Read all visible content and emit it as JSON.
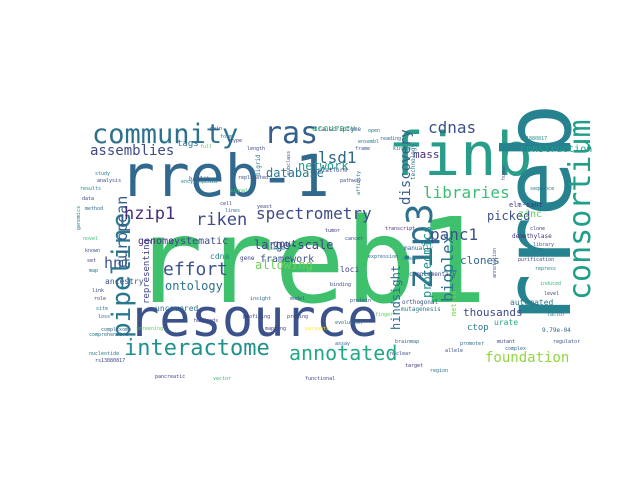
{
  "words": [
    {
      "text": "rreb1",
      "color": "#3ec06d"
    },
    {
      "text": "rreb-1",
      "color": "#31688e"
    },
    {
      "text": "resource",
      "color": "#3b528b"
    },
    {
      "text": "finb",
      "color": "#2a9d8a"
    },
    {
      "text": "rreb",
      "color": "#26828e"
    },
    {
      "text": "consortium",
      "color": "#1f9e89"
    },
    {
      "text": "pipeline",
      "color": "#2a788e"
    },
    {
      "text": "community",
      "color": "#2c728e"
    },
    {
      "text": "ras",
      "color": "#355f8d"
    },
    {
      "text": "zip3",
      "color": "#2d718e"
    },
    {
      "text": "interactome",
      "color": "#21918c"
    },
    {
      "text": "annotated",
      "color": "#22a884"
    },
    {
      "text": "cdnas",
      "color": "#3b528b"
    },
    {
      "text": "assemblies",
      "color": "#3e4989"
    },
    {
      "text": "libraries",
      "color": "#3dbc74"
    },
    {
      "text": "spectrometry",
      "color": "#3e4a89"
    },
    {
      "text": "riken",
      "color": "#3e4a89"
    },
    {
      "text": "european",
      "color": "#355f8d"
    },
    {
      "text": "hzip1",
      "color": "#472d7b"
    },
    {
      "text": "panc1",
      "color": "#3b528b"
    },
    {
      "text": "lsd1",
      "color": "#31688e"
    },
    {
      "text": "bioplex",
      "color": "#2c738e"
    },
    {
      "text": "effort",
      "color": "#3b528b"
    },
    {
      "text": "foundation",
      "color": "#90d743"
    },
    {
      "text": "discovery",
      "color": "#355f8d"
    },
    {
      "text": "hnt",
      "color": "#3b528b"
    },
    {
      "text": "network",
      "color": "#1f9a8a"
    },
    {
      "text": "database",
      "color": "#2a788e"
    },
    {
      "text": "ontology",
      "color": "#2c728e"
    },
    {
      "text": "allowing",
      "color": "#6ece58"
    },
    {
      "text": "hindsight",
      "color": "#2c728e"
    },
    {
      "text": "genome",
      "color": "#46327e"
    },
    {
      "text": "picked",
      "color": "#3b528b"
    },
    {
      "text": "proteomics",
      "color": "#21918c"
    },
    {
      "text": "large-scale",
      "color": "#414487"
    },
    {
      "text": "thousands",
      "color": "#3e4989"
    },
    {
      "text": "mass",
      "color": "#472d7b"
    },
    {
      "text": "clones",
      "color": "#31688e"
    },
    {
      "text": "construction",
      "color": "#1f9e89"
    },
    {
      "text": "zinc",
      "color": "#5ec962"
    },
    {
      "text": "framework",
      "color": "#3b528b"
    },
    {
      "text": "gout",
      "color": "#3e4989"
    },
    {
      "text": "systematic",
      "color": "#3e4989"
    },
    {
      "text": "representing",
      "color": "#414487"
    },
    {
      "text": "tags",
      "color": "#2c728e"
    },
    {
      "text": "accuracy",
      "color": "#3dbc74"
    },
    {
      "text": "automated",
      "color": "#2a788e"
    },
    {
      "text": "ctop",
      "color": "#2a788e"
    },
    {
      "text": "urate",
      "color": "#22a884"
    },
    {
      "text": "elm-sant",
      "color": "#46327e"
    },
    {
      "text": "ancestry",
      "color": "#3b528b"
    },
    {
      "text": "loci",
      "color": "#414487"
    },
    {
      "text": "cdna",
      "color": "#26828e"
    },
    {
      "text": "metric",
      "color": "#7ad151"
    },
    {
      "text": "uncovered",
      "color": "#2c728e"
    },
    {
      "text": "gene",
      "color": "#414487"
    },
    {
      "text": "health",
      "color": "#3b528b"
    },
    {
      "text": "platform",
      "color": "#3e4989"
    },
    {
      "text": "transcriptome",
      "color": "#3b528b"
    },
    {
      "text": "technology",
      "color": "#2c728e"
    },
    {
      "text": "complementary",
      "color": "#3e4989"
    },
    {
      "text": "manually",
      "color": "#31688e"
    },
    {
      "text": "mutagenesis",
      "color": "#2a788e"
    },
    {
      "text": "orthogonal",
      "color": "#3b528b"
    },
    {
      "text": "demethylase",
      "color": "#46327e"
    },
    {
      "text": "replicated",
      "color": "#3e4989"
    },
    {
      "text": "bigrid",
      "color": "#2a788e"
    },
    {
      "text": "probing",
      "color": "#414487"
    },
    {
      "text": "9.79e-04",
      "color": "#31688e"
    },
    {
      "text": "rs1880817",
      "color": "#21918c"
    },
    {
      "text": "comprehensive",
      "color": "#2c728e"
    },
    {
      "text": "encyclopedia",
      "color": "#26828e"
    },
    {
      "text": "brainmap",
      "color": "#31688e"
    },
    {
      "text": "evolution",
      "color": "#31688e"
    },
    {
      "text": "subclass",
      "color": "#3b528b"
    },
    {
      "text": "screening",
      "color": "#5ec962"
    },
    {
      "text": "nucleotide",
      "color": "#2a788e"
    },
    {
      "text": "mapping",
      "color": "#414487"
    },
    {
      "text": "variants",
      "color": "#fde725"
    },
    {
      "text": "hundreds",
      "color": "#414487"
    },
    {
      "text": "functional",
      "color": "#3e4989"
    },
    {
      "text": "rs13880817",
      "color": "#3e4989"
    },
    {
      "text": "pancreatic",
      "color": "#414487"
    },
    {
      "text": "complexome",
      "color": "#31688e"
    },
    {
      "text": "genomics",
      "color": "#2a788e"
    },
    {
      "text": "profiling",
      "color": "#46327e"
    },
    {
      "text": "insight",
      "color": "#31688e"
    },
    {
      "text": "vector",
      "color": "#35b779"
    },
    {
      "text": "yeast",
      "color": "#414487"
    },
    {
      "text": "affinity",
      "color": "#2c728e"
    },
    {
      "text": "purification",
      "color": "#414487"
    },
    {
      "text": "ensembl",
      "color": "#2a788e"
    },
    {
      "text": "annotation",
      "color": "#3b528b"
    },
    {
      "text": "transcript",
      "color": "#472d7b"
    },
    {
      "text": "human",
      "color": "#3e4989"
    },
    {
      "text": "protein",
      "color": "#3b528b"
    },
    {
      "text": "scale",
      "color": "#26828e"
    },
    {
      "text": "signal",
      "color": "#3dbc74"
    },
    {
      "text": "cell",
      "color": "#414487"
    },
    {
      "text": "lines",
      "color": "#2c728e"
    },
    {
      "text": "model",
      "color": "#3b528b"
    },
    {
      "text": "assay",
      "color": "#31688e"
    },
    {
      "text": "binding",
      "color": "#3e4989"
    },
    {
      "text": "domain",
      "color": "#21918c"
    },
    {
      "text": "finger",
      "color": "#5ec962"
    },
    {
      "text": "kinase",
      "color": "#2a788e"
    },
    {
      "text": "pathway",
      "color": "#3b528b"
    },
    {
      "text": "tumor",
      "color": "#46327e"
    },
    {
      "text": "cancer",
      "color": "#3e4989"
    },
    {
      "text": "expression",
      "color": "#31688e"
    },
    {
      "text": "sequence",
      "color": "#2c728e"
    },
    {
      "text": "clone",
      "color": "#414487"
    },
    {
      "text": "library",
      "color": "#3b528b"
    },
    {
      "text": "repress",
      "color": "#26828e"
    },
    {
      "text": "induced",
      "color": "#3dbc74"
    },
    {
      "text": "level",
      "color": "#414487"
    },
    {
      "text": "factor",
      "color": "#2a788e"
    },
    {
      "text": "regulator",
      "color": "#3b528b"
    },
    {
      "text": "complex",
      "color": "#31688e"
    },
    {
      "text": "nuclear",
      "color": "#3e4989"
    },
    {
      "text": "target",
      "color": "#46327e"
    },
    {
      "text": "region",
      "color": "#2c728e"
    },
    {
      "text": "promoter",
      "color": "#31688e"
    },
    {
      "text": "mutant",
      "color": "#414487"
    },
    {
      "text": "allele",
      "color": "#3b528b"
    },
    {
      "text": "study",
      "color": "#2a788e"
    },
    {
      "text": "analysis",
      "color": "#3e4989"
    },
    {
      "text": "results",
      "color": "#26828e"
    },
    {
      "text": "data",
      "color": "#414487"
    },
    {
      "text": "method",
      "color": "#31688e"
    },
    {
      "text": "novel",
      "color": "#3dbc74"
    },
    {
      "text": "known",
      "color": "#3b528b"
    },
    {
      "text": "set",
      "color": "#46327e"
    },
    {
      "text": "map",
      "color": "#2c728e"
    },
    {
      "text": "link",
      "color": "#3e4989"
    },
    {
      "text": "role",
      "color": "#414487"
    },
    {
      "text": "site",
      "color": "#2a788e"
    },
    {
      "text": "loss",
      "color": "#31688e"
    },
    {
      "text": "gain",
      "color": "#3b528b"
    },
    {
      "text": "form",
      "color": "#26828e"
    },
    {
      "text": "type",
      "color": "#414487"
    },
    {
      "text": "full",
      "color": "#5ec962"
    },
    {
      "text": "length",
      "color": "#3e4989"
    },
    {
      "text": "open",
      "color": "#2c728e"
    },
    {
      "text": "reading",
      "color": "#31688e"
    },
    {
      "text": "frame",
      "color": "#3b528b"
    }
  ]
}
